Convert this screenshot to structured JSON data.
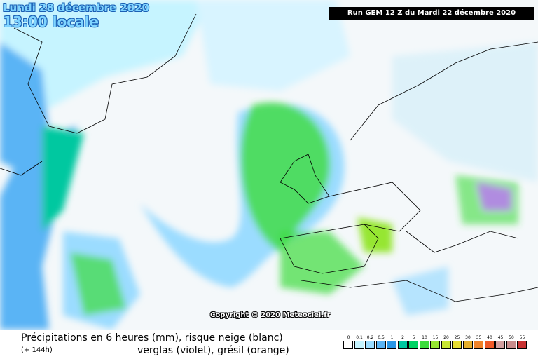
{
  "header": {
    "date": "Lundi 28 décembre 2020",
    "time": "13:00 locale",
    "run": "Run GEM 12 Z du Mardi 22 décembre 2020"
  },
  "copyright": "Copyright © 2020 Meteociel.fr",
  "footer": {
    "title": "Précipitations en 6 heures (mm), risque neige (blanc)",
    "lead": "(+ 144h)",
    "subtitle": "verglas (violet), grésil (orange)"
  },
  "legend": [
    {
      "label": "0",
      "color": "#ffffff"
    },
    {
      "label": "0.1",
      "color": "#c6f4ff"
    },
    {
      "label": "0.2",
      "color": "#9bdcff"
    },
    {
      "label": "0.5",
      "color": "#5ab4f5"
    },
    {
      "label": "1",
      "color": "#2896e6"
    },
    {
      "label": "2",
      "color": "#00c8a0"
    },
    {
      "label": "5",
      "color": "#00d264"
    },
    {
      "label": "10",
      "color": "#3cdc3c"
    },
    {
      "label": "15",
      "color": "#96e632"
    },
    {
      "label": "20",
      "color": "#c8e632"
    },
    {
      "label": "25",
      "color": "#e6dc32"
    },
    {
      "label": "30",
      "color": "#e6af2d"
    },
    {
      "label": "35",
      "color": "#f08228"
    },
    {
      "label": "40",
      "color": "#f05a28"
    },
    {
      "label": "45",
      "color": "#d2a0a0"
    },
    {
      "label": "50",
      "color": "#c88c8c"
    },
    {
      "label": "55",
      "color": "#c83232"
    }
  ]
}
